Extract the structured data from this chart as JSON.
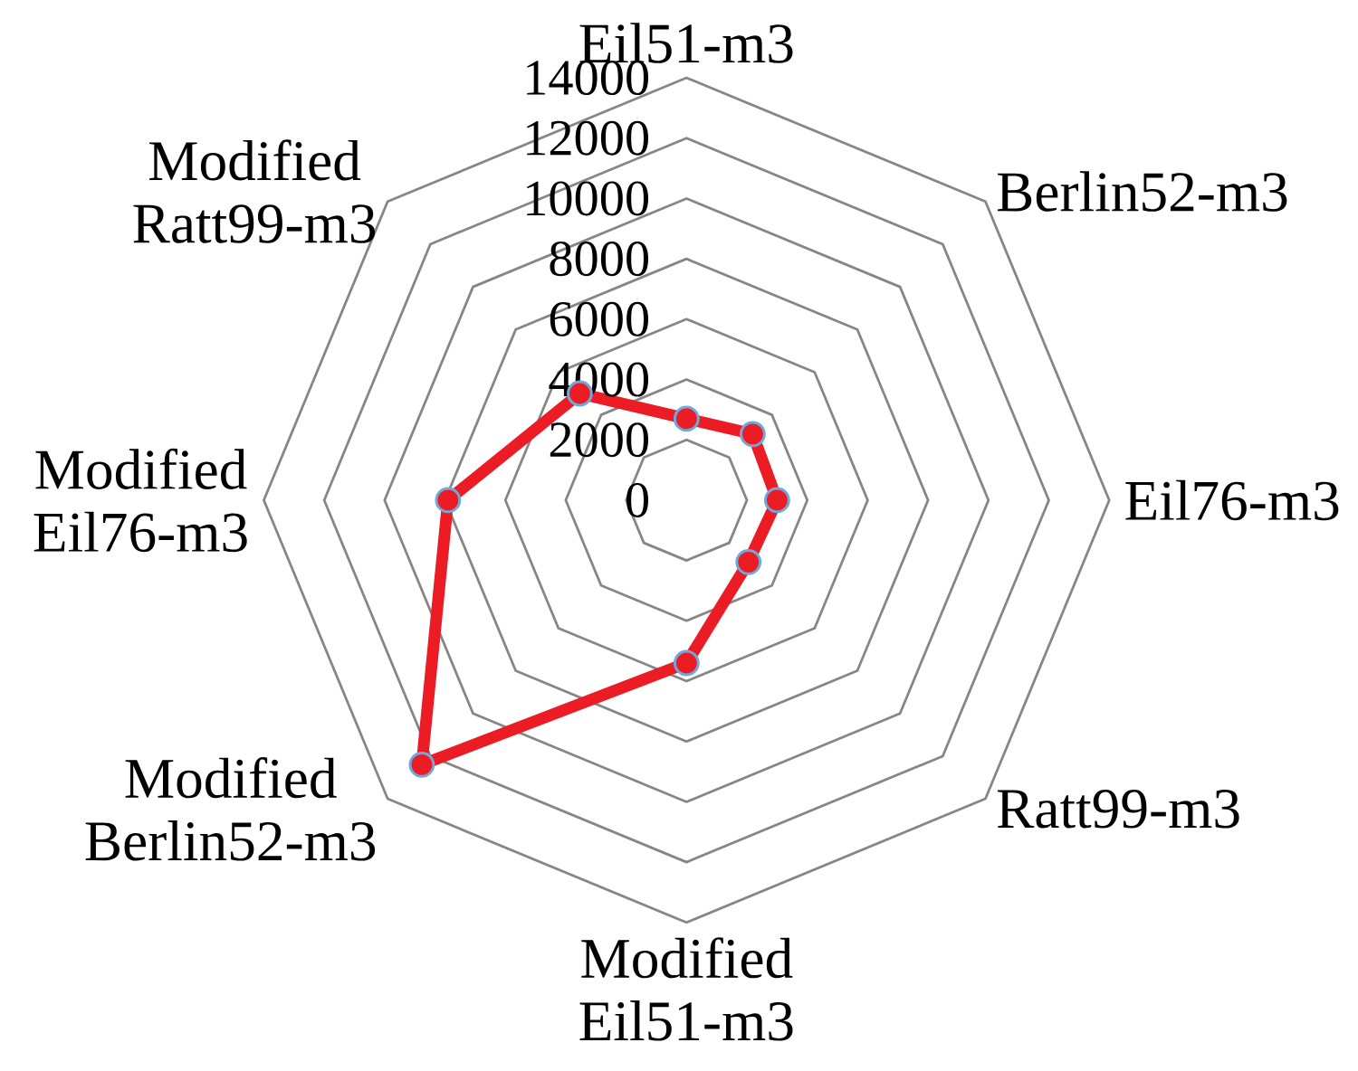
{
  "chart_data": {
    "type": "radar",
    "categories": [
      "Eil51-m3",
      "Berlin52-m3",
      "Eil76-m3",
      "Ratt99-m3",
      "Modified Eil51-m3",
      "Modified Berlin52-m3",
      "Modified Eil76-m3",
      "Modified Ratt99-m3"
    ],
    "series": [
      {
        "color": "#ec1c24",
        "values": [
          2700,
          3100,
          3000,
          2900,
          5400,
          12400,
          7900,
          5000
        ]
      }
    ],
    "ylim": [
      0,
      14000
    ],
    "yticks": [
      0,
      2000,
      4000,
      6000,
      8000,
      10000,
      12000,
      14000
    ],
    "grid": true,
    "marker": "circle"
  }
}
